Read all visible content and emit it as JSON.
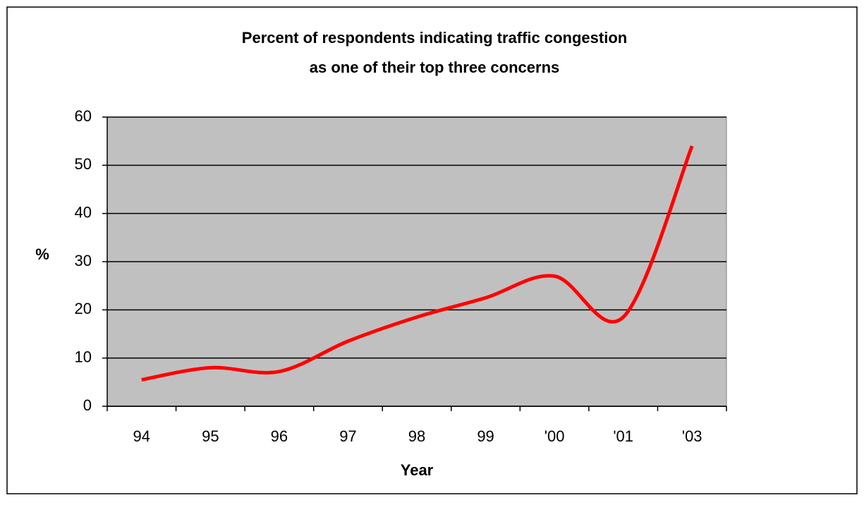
{
  "chart_data": {
    "type": "line",
    "title": [
      "Percent of respondents indicating traffic congestion",
      "as one of their top three concerns"
    ],
    "xlabel": "Year",
    "ylabel": "%",
    "categories": [
      "94",
      "95",
      "96",
      "97",
      "98",
      "99",
      "'00",
      "'01",
      "'03"
    ],
    "series": [
      {
        "name": "Traffic congestion",
        "color": "#ff0000",
        "values": [
          5.5,
          8,
          7.2,
          13.5,
          18.5,
          22.5,
          27,
          18.5,
          54
        ]
      }
    ],
    "ylim": [
      0,
      60
    ],
    "yticks": [
      0,
      10,
      20,
      30,
      40,
      50,
      60
    ],
    "grid": true,
    "plot_background": "#c0c0c0"
  }
}
